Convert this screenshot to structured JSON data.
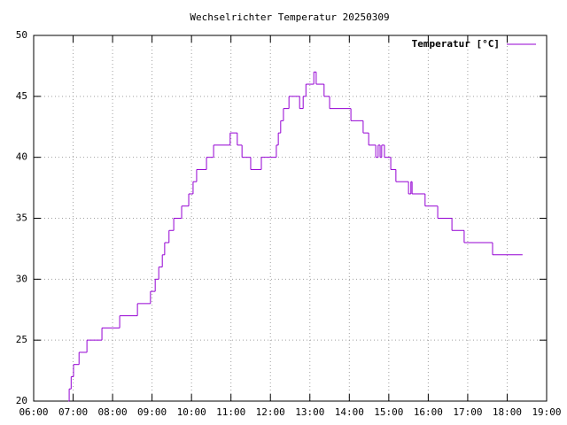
{
  "chart_data": {
    "type": "line",
    "style": "steps",
    "title": "Wechselrichter Temperatur 20250309",
    "x": [
      6.88,
      6.9,
      6.95,
      7.01,
      7.15,
      7.35,
      7.73,
      8.18,
      8.63,
      8.96,
      9.08,
      9.17,
      9.26,
      9.32,
      9.43,
      9.55,
      9.75,
      9.93,
      10.04,
      10.13,
      10.38,
      10.56,
      10.98,
      11.16,
      11.28,
      11.5,
      11.77,
      12.15,
      12.2,
      12.26,
      12.33,
      12.47,
      12.74,
      12.83,
      12.9,
      13.1,
      13.16,
      13.36,
      13.5,
      14.04,
      14.35,
      14.49,
      14.67,
      14.73,
      14.78,
      14.82,
      14.89,
      15.05,
      15.18,
      15.5,
      15.56,
      15.59,
      15.92,
      16.24,
      16.6,
      16.91,
      17.63,
      18.39
    ],
    "series": [
      {
        "name": "Temperatur [°C]",
        "color": "#9400d3",
        "values": [
          20,
          21,
          22,
          23,
          24,
          25,
          26,
          27,
          28,
          29,
          30,
          31,
          32,
          33,
          34,
          35,
          36,
          37,
          38,
          39,
          40,
          41,
          42,
          41,
          40,
          39,
          40,
          41,
          42,
          43,
          44,
          45,
          44,
          45,
          46,
          47,
          46,
          45,
          44,
          43,
          42,
          41,
          40,
          41,
          40,
          41,
          40,
          39,
          38,
          37,
          38,
          37,
          36,
          35,
          34,
          33,
          32,
          32
        ]
      }
    ],
    "xlim": [
      6,
      19
    ],
    "xticks": [
      {
        "value": 6,
        "label": "06:00"
      },
      {
        "value": 7,
        "label": "07:00"
      },
      {
        "value": 8,
        "label": "08:00"
      },
      {
        "value": 9,
        "label": "09:00"
      },
      {
        "value": 10,
        "label": "10:00"
      },
      {
        "value": 11,
        "label": "11:00"
      },
      {
        "value": 12,
        "label": "12:00"
      },
      {
        "value": 13,
        "label": "13:00"
      },
      {
        "value": 14,
        "label": "14:00"
      },
      {
        "value": 15,
        "label": "15:00"
      },
      {
        "value": 16,
        "label": "16:00"
      },
      {
        "value": 17,
        "label": "17:00"
      },
      {
        "value": 18,
        "label": "18:00"
      },
      {
        "value": 19,
        "label": "19:00"
      }
    ],
    "ylim": [
      20,
      50
    ],
    "yticks": [
      20,
      25,
      30,
      35,
      40,
      45,
      50
    ],
    "grid": true,
    "legend": "top-right"
  }
}
